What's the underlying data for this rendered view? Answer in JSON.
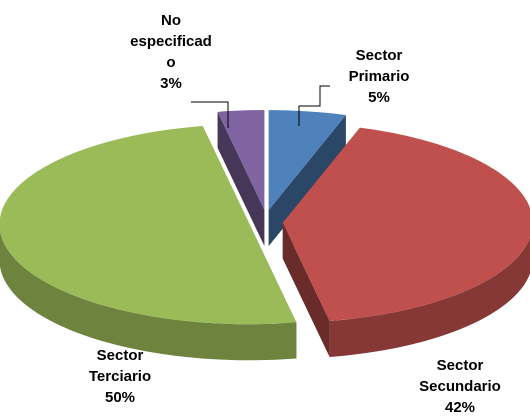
{
  "chart_data": {
    "type": "pie3d",
    "categories": [
      "Sector Primario",
      "Sector Secundario",
      "Sector Terciario",
      "No especificado"
    ],
    "values": [
      5,
      42,
      50,
      3
    ],
    "value_labels": [
      "5%",
      "42%",
      "50%",
      "3%"
    ],
    "colors": [
      "#4f81bd",
      "#c0504d",
      "#9bbb59",
      "#8064a2"
    ]
  }
}
